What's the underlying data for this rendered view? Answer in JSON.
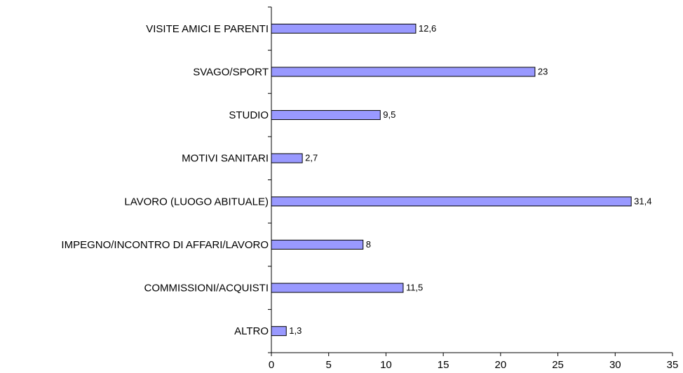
{
  "chart_data": {
    "type": "bar",
    "orientation": "horizontal",
    "categories": [
      "VISITE AMICI E PARENTI",
      "SVAGO/SPORT",
      "STUDIO",
      "MOTIVI SANITARI",
      "LAVORO (LUOGO ABITUALE)",
      "IMPEGNO/INCONTRO DI AFFARI/LAVORO",
      "COMMISSIONI/ACQUISTI",
      "ALTRO"
    ],
    "values": [
      12.6,
      23,
      9.5,
      2.7,
      31.4,
      8,
      11.5,
      1.3
    ],
    "value_labels": [
      "12,6",
      "23",
      "9,5",
      "2,7",
      "31,4",
      "8",
      "11,5",
      "1,3"
    ],
    "xlim": [
      0,
      35
    ],
    "x_ticks": [
      0,
      5,
      10,
      15,
      20,
      25,
      30,
      35
    ],
    "x_tick_labels": [
      "0",
      "5",
      "10",
      "15",
      "20",
      "25",
      "30",
      "35"
    ],
    "title": "",
    "xlabel": "",
    "ylabel": "",
    "grid": false,
    "legend": "none",
    "bar_color": "#9999ff",
    "bar_edge_color": "#000000"
  }
}
